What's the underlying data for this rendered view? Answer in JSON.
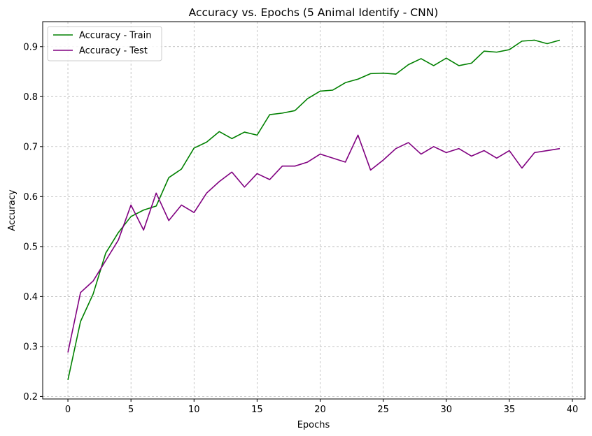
{
  "chart_data": {
    "type": "line",
    "title": "Accuracy vs. Epochs (5 Animal Identify - CNN)",
    "xlabel": "Epochs",
    "ylabel": "Accuracy",
    "xlim": [
      -2,
      41
    ],
    "ylim": [
      0.195,
      0.95
    ],
    "xticks": [
      0,
      5,
      10,
      15,
      20,
      25,
      30,
      35,
      40
    ],
    "yticks": [
      0.2,
      0.3,
      0.4,
      0.5,
      0.6,
      0.7,
      0.8,
      0.9
    ],
    "grid": true,
    "legend_position": "top-left",
    "x": [
      0,
      1,
      2,
      3,
      4,
      5,
      6,
      7,
      8,
      9,
      10,
      11,
      12,
      13,
      14,
      15,
      16,
      17,
      18,
      19,
      20,
      21,
      22,
      23,
      24,
      25,
      26,
      27,
      28,
      29,
      30,
      31,
      32,
      33,
      34,
      35,
      36,
      37,
      38,
      39
    ],
    "series": [
      {
        "name": "Accuracy - Train",
        "color": "#008000",
        "values": [
          0.233,
          0.35,
          0.405,
          0.487,
          0.528,
          0.56,
          0.573,
          0.581,
          0.638,
          0.655,
          0.697,
          0.709,
          0.73,
          0.716,
          0.729,
          0.723,
          0.764,
          0.767,
          0.772,
          0.796,
          0.811,
          0.813,
          0.828,
          0.835,
          0.846,
          0.847,
          0.845,
          0.864,
          0.876,
          0.862,
          0.877,
          0.862,
          0.867,
          0.891,
          0.889,
          0.894,
          0.911,
          0.913,
          0.906,
          0.913
        ]
      },
      {
        "name": "Accuracy - Test",
        "color": "#800080",
        "values": [
          0.288,
          0.408,
          0.431,
          0.472,
          0.513,
          0.583,
          0.533,
          0.607,
          0.552,
          0.583,
          0.568,
          0.607,
          0.63,
          0.649,
          0.619,
          0.646,
          0.634,
          0.661,
          0.661,
          0.669,
          0.685,
          0.677,
          0.669,
          0.723,
          0.653,
          0.673,
          0.696,
          0.708,
          0.685,
          0.7,
          0.688,
          0.696,
          0.681,
          0.692,
          0.677,
          0.692,
          0.657,
          0.688,
          0.692,
          0.696
        ]
      }
    ]
  }
}
